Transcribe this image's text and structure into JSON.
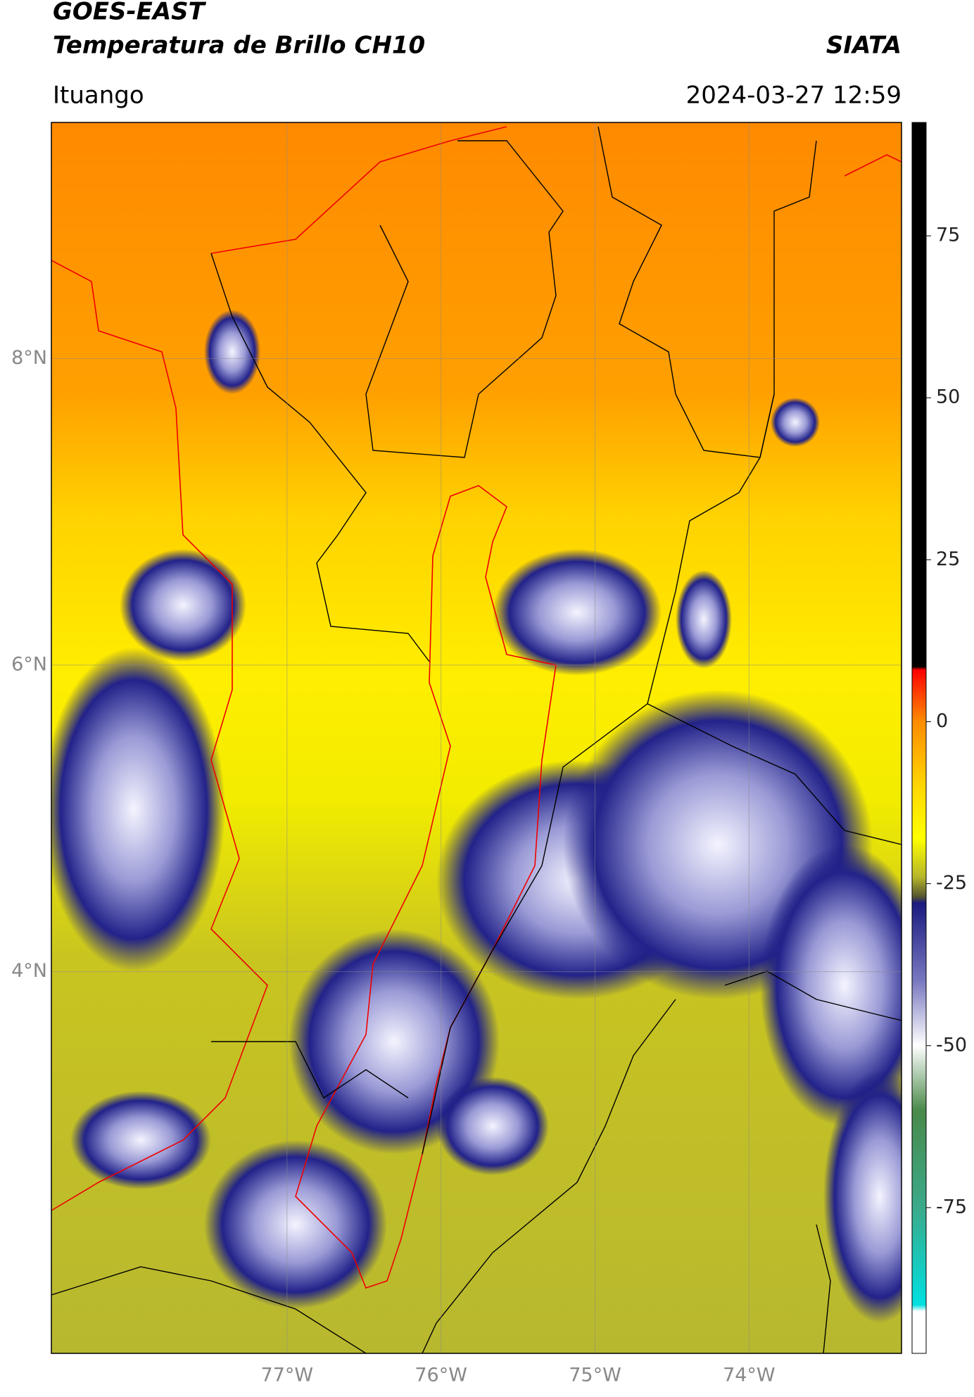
{
  "map_data": {
    "title": "GOES-EAST",
    "subtitle": "Temperatura de Brillo CH10",
    "source": "SIATA",
    "region": "Ituango",
    "datetime": "2024-03-27 12:59",
    "xlim": [
      -78.53,
      -73.01
    ],
    "ylim": [
      1.51,
      9.54
    ],
    "xticks": [
      {
        "value": -77,
        "label": "77°W"
      },
      {
        "value": -76,
        "label": "76°W"
      },
      {
        "value": -75,
        "label": "75°W"
      },
      {
        "value": -74,
        "label": "74°W"
      }
    ],
    "yticks": [
      {
        "value": 8,
        "label": "8°N"
      },
      {
        "value": 6,
        "label": "6°N"
      },
      {
        "value": 4,
        "label": "4°N"
      }
    ],
    "grid": true,
    "colorbar": {
      "lim": [
        -97.5,
        92.5
      ],
      "ticks": [
        75,
        50,
        25,
        0,
        -25,
        -50,
        -75
      ],
      "colormap": [
        {
          "value": 92.5,
          "color": "#000000"
        },
        {
          "value": 8.5,
          "color": "#000000"
        },
        {
          "value": 8,
          "color": "#ff0000"
        },
        {
          "value": 0,
          "color": "#ff8c00"
        },
        {
          "value": -10,
          "color": "#ffd700"
        },
        {
          "value": -18,
          "color": "#ffff00"
        },
        {
          "value": -24,
          "color": "#b5b52a"
        },
        {
          "value": -27,
          "color": "#555530"
        },
        {
          "value": -28,
          "color": "#1a1a80"
        },
        {
          "value": -40,
          "color": "#7878c0"
        },
        {
          "value": -50,
          "color": "#ffffff"
        },
        {
          "value": -60,
          "color": "#4a8a4a"
        },
        {
          "value": -75,
          "color": "#3aaa8a"
        },
        {
          "value": -90,
          "color": "#00e0e0"
        },
        {
          "value": -91,
          "color": "#ffffff"
        },
        {
          "value": -97.5,
          "color": "#ffffff"
        }
      ]
    }
  }
}
